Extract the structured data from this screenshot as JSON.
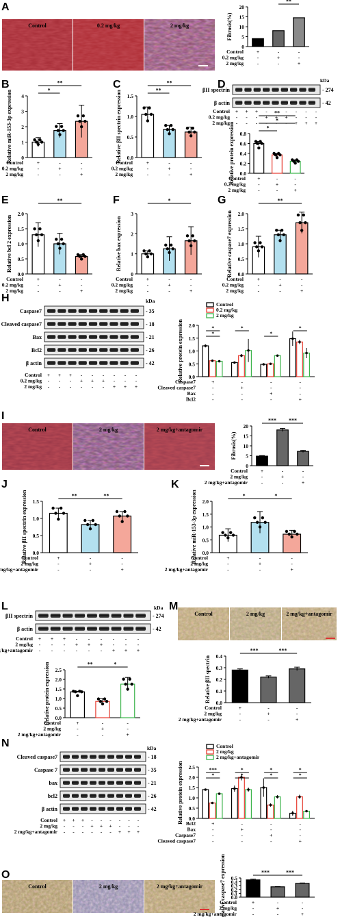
{
  "colors": {
    "white": "#ffffff",
    "blue": "#b3e0ef",
    "pink": "#f4a79a",
    "black": "#000000",
    "dark_gray": "#666666",
    "light_gray": "#8a8a8a",
    "red": "#e63a2e",
    "green": "#3bb34a"
  },
  "panels": [
    "A",
    "B",
    "C",
    "D",
    "E",
    "F",
    "G",
    "H",
    "I",
    "J",
    "K",
    "L",
    "M",
    "N",
    "O"
  ],
  "row_labels": {
    "control": "Control",
    "low": "0.2 mg/kg",
    "high": "2 mg/kg",
    "antag": "2 mg/kg+antagomir",
    "caspase7": "Caspase7",
    "cleaved_caspase7": "Cleaved caspase7",
    "bax": "Bax",
    "bcl2": "Bcl2",
    "caspase_7": "Caspase 7",
    "bax_lc": "bax",
    "bcl2_lc": "bcl2",
    "b_actin": "β actin",
    "bII_spectrin": "βII spectrin"
  },
  "signs": {
    "plus": "+",
    "minus": "-"
  },
  "kda": {
    "unit": "kDa",
    "s274": "274",
    "s42": "42",
    "s35": "35",
    "s18": "18",
    "s21": "21",
    "s26": "26"
  },
  "sig": {
    "one": "*",
    "two": "**",
    "three": "***"
  },
  "chart_data": [
    {
      "panel": "A",
      "type": "bar",
      "ylabel": "Fibrosis(%)",
      "ylim": [
        0,
        20
      ],
      "ticks": [
        "0",
        "5",
        "10",
        "15",
        "20"
      ],
      "values": [
        4,
        8,
        14.5
      ],
      "colors": [
        "#000000",
        "#666666",
        "#8a8a8a"
      ],
      "groups": [
        [
          1,
          0,
          0
        ],
        [
          0,
          1,
          0
        ],
        [
          0,
          0,
          1
        ]
      ],
      "rows": [
        "Control",
        "0.2 mg/kg",
        "2 mg/kg"
      ],
      "sig": [
        {
          "a": 1,
          "b": 2,
          "text": "**",
          "level": 0
        },
        {
          "a": 0,
          "b": 2,
          "text": "***",
          "level": 1
        }
      ]
    },
    {
      "panel": "B",
      "type": "bar",
      "ylabel": "Relative miR-153-3p expression",
      "ylim": [
        0,
        4
      ],
      "ticks": [
        "0",
        "1",
        "2",
        "3",
        "4"
      ],
      "values": [
        1.0,
        1.75,
        2.35
      ],
      "errors": [
        0.3,
        0.45,
        1.05
      ],
      "colors": [
        "#ffffff",
        "#b3e0ef",
        "#f4a79a"
      ],
      "groups": [
        [
          1,
          0,
          0
        ],
        [
          0,
          1,
          0
        ],
        [
          0,
          0,
          1
        ]
      ],
      "rows": [
        "Control",
        "0.2 mg/kg",
        "2 mg/kg"
      ],
      "sig": [
        {
          "a": 0,
          "b": 1,
          "text": "*",
          "level": 0
        },
        {
          "a": 0,
          "b": 2,
          "text": "**",
          "level": 1
        }
      ]
    },
    {
      "panel": "C",
      "type": "bar",
      "ylabel": "Relative βII spectrin expression",
      "ylim": [
        0,
        1.5
      ],
      "ticks": [
        "0.0",
        "0.5",
        "1.0",
        "1.5"
      ],
      "values": [
        1.05,
        0.68,
        0.62
      ],
      "errors": [
        0.18,
        0.1,
        0.12
      ],
      "colors": [
        "#ffffff",
        "#b3e0ef",
        "#f4a79a"
      ],
      "groups": [
        [
          1,
          0,
          0
        ],
        [
          0,
          1,
          0
        ],
        [
          0,
          0,
          1
        ]
      ],
      "rows": [
        "Control",
        "0.2 mg/kg",
        "2 mg/kg"
      ],
      "sig": [
        {
          "a": 0,
          "b": 1,
          "text": "**",
          "level": 0
        },
        {
          "a": 0,
          "b": 2,
          "text": "**",
          "level": 1
        }
      ]
    },
    {
      "panel": "D",
      "type": "bar",
      "ylabel": "Relative protein expression",
      "ylim": [
        0,
        0.8
      ],
      "ticks": [
        "0.0",
        "0.2",
        "0.4",
        "0.6",
        "0.8"
      ],
      "values": [
        0.6,
        0.37,
        0.24
      ],
      "errors": [
        0.04,
        0.03,
        0.03
      ],
      "colors": [
        "#ffffff",
        "#ffffff",
        "#ffffff"
      ],
      "strokes": [
        "#000000",
        "#e63a2e",
        "#3bb34a"
      ],
      "groups": [
        [
          1,
          0,
          0
        ],
        [
          0,
          1,
          0
        ],
        [
          0,
          0,
          1
        ]
      ],
      "rows": [
        "Control",
        "0.2 mg/kg",
        "2 mg/kg"
      ],
      "sig": [
        {
          "a": 0,
          "b": 1,
          "text": "*",
          "level": 0
        },
        {
          "a": 0,
          "b": 2,
          "text": "*",
          "level": 1
        },
        {
          "a": 0,
          "b": 2,
          "text": "**",
          "level": 2
        }
      ]
    },
    {
      "panel": "E",
      "type": "bar",
      "ylabel": "Relative bcl 2 expression",
      "ylim": [
        0,
        2.0
      ],
      "ticks": [
        "0.0",
        "0.5",
        "1.0",
        "1.5",
        "2.0"
      ],
      "values": [
        1.3,
        1.0,
        0.58
      ],
      "errors": [
        0.4,
        0.35,
        0.06
      ],
      "colors": [
        "#ffffff",
        "#b3e0ef",
        "#f4a79a"
      ],
      "groups": [
        [
          1,
          0,
          0
        ],
        [
          0,
          1,
          0
        ],
        [
          0,
          0,
          1
        ]
      ],
      "rows": [
        "Control",
        "0.2 mg/kg",
        "2 mg/kg"
      ],
      "sig": [
        {
          "a": 0,
          "b": 2,
          "text": "**",
          "level": 1
        }
      ]
    },
    {
      "panel": "F",
      "type": "bar",
      "ylabel": "Relative bax expression",
      "ylim": [
        0,
        3
      ],
      "ticks": [
        "0",
        "1",
        "2",
        "3"
      ],
      "values": [
        1.0,
        1.25,
        1.65
      ],
      "errors": [
        0.15,
        0.6,
        0.7
      ],
      "colors": [
        "#ffffff",
        "#b3e0ef",
        "#f4a79a"
      ],
      "groups": [
        [
          1,
          0,
          0
        ],
        [
          0,
          1,
          0
        ],
        [
          0,
          0,
          1
        ]
      ],
      "rows": [
        "Control",
        "0.2 mg/kg",
        "2 mg/kg"
      ],
      "sig": [
        {
          "a": 0,
          "b": 2,
          "text": "*",
          "level": 1
        }
      ]
    },
    {
      "panel": "G",
      "type": "bar",
      "ylabel": "Relative caspase7 expression",
      "ylim": [
        0,
        2.0
      ],
      "ticks": [
        "0.0",
        "0.5",
        "1.0",
        "1.5",
        "2.0"
      ],
      "values": [
        0.9,
        1.3,
        1.7
      ],
      "errors": [
        0.35,
        0.15,
        0.35
      ],
      "colors": [
        "#ffffff",
        "#b3e0ef",
        "#f4a79a"
      ],
      "groups": [
        [
          1,
          0,
          0
        ],
        [
          0,
          1,
          0
        ],
        [
          0,
          0,
          1
        ]
      ],
      "rows": [
        "Control",
        "0.2 mg/kg",
        "2 mg/kg"
      ],
      "sig": [
        {
          "a": 0,
          "b": 2,
          "text": "**",
          "level": 1
        }
      ]
    },
    {
      "panel": "H",
      "type": "grouped-bar",
      "ylabel": "Relative protein expression",
      "ylim": [
        0,
        2.0
      ],
      "ticks": [
        "0.0",
        "0.5",
        "1.0",
        "1.5",
        "2.0"
      ],
      "legend": [
        "Control",
        "0.2 mg/kg",
        "2 mg/kg"
      ],
      "strokes": [
        "#000000",
        "#e63a2e",
        "#3bb34a"
      ],
      "categories": [
        "Caspase7",
        "Cleaved caspase7",
        "Bax",
        "Bcl2"
      ],
      "series": [
        {
          "name": "Control",
          "values": [
            1.2,
            0.55,
            0.48,
            1.48
          ]
        },
        {
          "name": "0.2 mg/kg",
          "values": [
            0.62,
            0.82,
            0.5,
            1.35
          ]
        },
        {
          "name": "2 mg/kg",
          "values": [
            0.6,
            1.02,
            0.82,
            0.92
          ]
        }
      ],
      "errors": [
        [
          0.06,
          0.04,
          0.03,
          0.28
        ],
        [
          0.05,
          0.06,
          0.03,
          0.08
        ],
        [
          0.04,
          0.45,
          0.04,
          0.2
        ]
      ],
      "sig": [
        {
          "g": 0,
          "text": "*"
        },
        {
          "g": 0,
          "text": "*"
        },
        {
          "g": 1,
          "text": "*"
        },
        {
          "g": 2,
          "text": "*"
        },
        {
          "g": 3,
          "text": "*"
        }
      ]
    },
    {
      "panel": "I",
      "type": "bar",
      "ylabel": "Fibrosis(%)",
      "ylim": [
        0,
        20
      ],
      "ticks": [
        "0",
        "5",
        "10",
        "15",
        "20"
      ],
      "values": [
        4.8,
        18,
        7.2
      ],
      "errors": [
        0.3,
        0.8,
        0.5
      ],
      "colors": [
        "#000000",
        "#666666",
        "#666666"
      ],
      "groups": [
        [
          1,
          0,
          0
        ],
        [
          0,
          1,
          0
        ],
        [
          0,
          0,
          1
        ]
      ],
      "rows": [
        "Control",
        "2 mg/kg",
        "2 mg/kg+antagomir"
      ],
      "sig": [
        {
          "a": 0,
          "b": 1,
          "text": "***",
          "level": 0
        },
        {
          "a": 1,
          "b": 2,
          "text": "***",
          "level": 0
        }
      ]
    },
    {
      "panel": "J",
      "type": "bar",
      "ylabel": "Relative βII spectrin expression",
      "ylim": [
        0,
        1.5
      ],
      "ticks": [
        "0.0",
        "0.5",
        "1.0",
        "1.5"
      ],
      "values": [
        1.15,
        0.82,
        1.07
      ],
      "errors": [
        0.15,
        0.12,
        0.13
      ],
      "colors": [
        "#ffffff",
        "#b3e0ef",
        "#f4a79a"
      ],
      "groups": [
        [
          1,
          0,
          0
        ],
        [
          0,
          1,
          0
        ],
        [
          0,
          0,
          1
        ]
      ],
      "rows": [
        "Control",
        "2 mg/kg",
        "2 mg/kg+antagomir"
      ],
      "sig": [
        {
          "a": 0,
          "b": 1,
          "text": "**",
          "level": 0
        },
        {
          "a": 1,
          "b": 2,
          "text": "**",
          "level": 0
        }
      ]
    },
    {
      "panel": "K",
      "type": "bar",
      "ylabel": "Relative miR-153-3p expression",
      "ylim": [
        0,
        2.0
      ],
      "ticks": [
        "0.0",
        "0.5",
        "1.0",
        "1.5",
        "2.0"
      ],
      "values": [
        0.68,
        1.18,
        0.72
      ],
      "errors": [
        0.25,
        0.42,
        0.15
      ],
      "colors": [
        "#ffffff",
        "#b3e0ef",
        "#f4a79a"
      ],
      "groups": [
        [
          1,
          0,
          0
        ],
        [
          0,
          1,
          0
        ],
        [
          0,
          0,
          1
        ]
      ],
      "rows": [
        "Control",
        "2 mg/kg",
        "2 mg/kg+antagomir"
      ],
      "sig": [
        {
          "a": 0,
          "b": 1,
          "text": "*",
          "level": 0
        },
        {
          "a": 1,
          "b": 2,
          "text": "*",
          "level": 0
        }
      ]
    },
    {
      "panel": "L",
      "type": "bar",
      "ylabel": "Relative protein expression",
      "ylim": [
        0,
        2.5
      ],
      "ticks": [
        "0.0",
        "0.5",
        "1.0",
        "1.5",
        "2.0",
        "2.5"
      ],
      "values": [
        1.35,
        0.85,
        1.75
      ],
      "errors": [
        0.03,
        0.15,
        0.35
      ],
      "colors": [
        "#ffffff",
        "#ffffff",
        "#ffffff"
      ],
      "strokes": [
        "#000000",
        "#e63a2e",
        "#3bb34a"
      ],
      "groups": [
        [
          1,
          0,
          0
        ],
        [
          0,
          1,
          0
        ],
        [
          0,
          0,
          1
        ]
      ],
      "rows": [
        "Control",
        "2 mg/kg",
        "2 mg/kg+antagomir"
      ],
      "sig": [
        {
          "a": 0,
          "b": 1,
          "text": "**",
          "level": 0
        },
        {
          "a": 1,
          "b": 2,
          "text": "*",
          "level": 0
        }
      ]
    },
    {
      "panel": "M",
      "type": "bar",
      "ylabel": "Relative βII spectrin",
      "ylim": [
        0,
        0.4
      ],
      "ticks": [
        "0.0",
        "0.1",
        "0.2",
        "0.3",
        "0.4"
      ],
      "values": [
        0.28,
        0.22,
        0.29
      ],
      "errors": [
        0.01,
        0.01,
        0.015
      ],
      "colors": [
        "#000000",
        "#666666",
        "#666666"
      ],
      "groups": [
        [
          1,
          0,
          0
        ],
        [
          0,
          1,
          0
        ],
        [
          0,
          0,
          1
        ]
      ],
      "rows": [
        "Control",
        "2 mg/kg",
        "2 mg/kg+antagomir"
      ],
      "sig": [
        {
          "a": 0,
          "b": 1,
          "text": "***",
          "level": 0
        },
        {
          "a": 1,
          "b": 2,
          "text": "***",
          "level": 0
        }
      ]
    },
    {
      "panel": "N",
      "type": "grouped-bar",
      "ylabel": "Relative protein expression",
      "ylim": [
        0,
        2.5
      ],
      "ticks": [
        "0.0",
        "0.5",
        "1.0",
        "1.5",
        "2.0",
        "2.5"
      ],
      "legend": [
        "Control",
        "2 mg/kg",
        "2 mg/kg+antagomir"
      ],
      "strokes": [
        "#000000",
        "#e63a2e",
        "#3bb34a"
      ],
      "categories": [
        "Bcl2",
        "Bax",
        "Caspase7",
        "Cleaved caspase7"
      ],
      "series": [
        {
          "name": "Control",
          "values": [
            1.4,
            1.45,
            1.5,
            0.25
          ]
        },
        {
          "name": "2 mg/kg",
          "values": [
            0.75,
            2.0,
            0.65,
            1.05
          ]
        },
        {
          "name": "2 mg/kg+antagomir",
          "values": [
            1.2,
            1.4,
            1.05,
            0.35
          ]
        }
      ],
      "errors": [
        [
          0.05,
          0.15,
          0.45,
          0.12
        ],
        [
          0.05,
          0.15,
          0.08,
          0.1
        ],
        [
          0.05,
          0.1,
          0.08,
          0.03
        ]
      ],
      "sig": [
        {
          "g": 0,
          "text": "***"
        },
        {
          "g": 0,
          "text": "*"
        },
        {
          "g": 1,
          "text": "*"
        },
        {
          "g": 1,
          "text": "*"
        },
        {
          "g": 2,
          "text": "*"
        },
        {
          "g": 2,
          "text": "*"
        },
        {
          "g": 3,
          "text": "*"
        },
        {
          "g": 3,
          "text": "*"
        }
      ]
    },
    {
      "panel": "O",
      "type": "bar",
      "ylabel": "Relative caspase7 expression",
      "ylim": [
        0,
        0.5
      ],
      "ticks": [
        "0.0",
        "0.1",
        "0.2",
        "0.3",
        "0.4",
        "0.5"
      ],
      "values": [
        0.45,
        0.27,
        0.36
      ],
      "errors": [
        0.02,
        0.005,
        0.01
      ],
      "colors": [
        "#000000",
        "#666666",
        "#666666"
      ],
      "groups": [
        [
          1,
          0,
          0
        ],
        [
          0,
          1,
          0
        ],
        [
          0,
          0,
          1
        ]
      ],
      "rows": [
        "Control",
        "2 mg/kg",
        "2 mg/kg+antagomir"
      ],
      "sig": [
        {
          "a": 0,
          "b": 1,
          "text": "***",
          "level": 0
        },
        {
          "a": 1,
          "b": 2,
          "text": "***",
          "level": 0
        }
      ]
    }
  ]
}
